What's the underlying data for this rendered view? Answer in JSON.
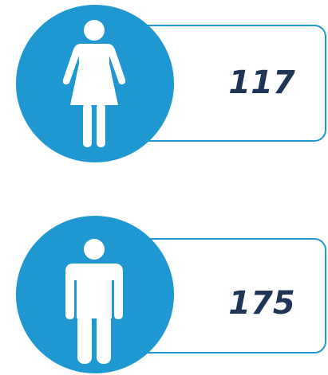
{
  "items": [
    {
      "value": 117
    },
    {
      "value": 175
    }
  ]
}
